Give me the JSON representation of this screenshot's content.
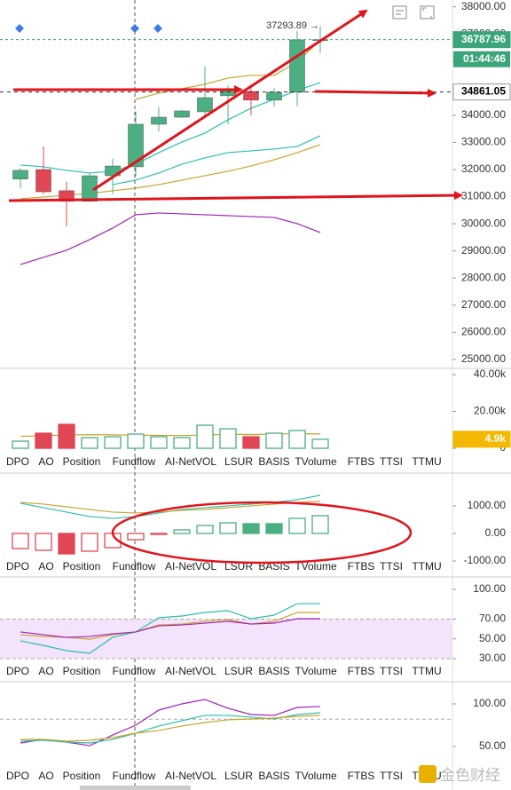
{
  "chart_data": [
    {
      "type": "candlestick",
      "open": [
        31650,
        32000,
        31220,
        30830,
        31770,
        32100,
        33670,
        33930,
        34130,
        34720,
        34880,
        34560,
        34850,
        36780
      ],
      "high": [
        32050,
        32850,
        31540,
        31850,
        32400,
        34150,
        34300,
        34200,
        35800,
        35100,
        35000,
        35000,
        37100,
        37293.89
      ],
      "low": [
        31300,
        31100,
        29910,
        30800,
        31100,
        31750,
        33400,
        33900,
        33950,
        33670,
        34000,
        34330,
        34330,
        36300
      ],
      "close": [
        31970,
        31180,
        30830,
        31770,
        32130,
        33670,
        33930,
        34160,
        34650,
        34980,
        34560,
        34850,
        36780,
        36787.96
      ],
      "up_color": "#4caf82",
      "down_color": "#e04653",
      "lines": [
        {
          "color": "#2bbfae",
          "values": [
            32166,
            32100,
            31970,
            31871,
            31937,
            32198,
            32624,
            33016,
            33344,
            33834,
            34260,
            34587,
            34914,
            35209
          ]
        },
        {
          "color": "#2bbfae",
          "values": [
            null,
            null,
            null,
            null,
            31446,
            31609,
            31871,
            32198,
            32427,
            32624,
            32689,
            32754,
            32853,
            33245
          ]
        },
        {
          "color": "#c9a227",
          "values": [
            30922,
            30988,
            31053,
            31119,
            31217,
            31315,
            31446,
            31609,
            31773,
            31937,
            32133,
            32362,
            32624,
            32918
          ]
        },
        {
          "color": "#c9a227",
          "values": [
            null,
            null,
            null,
            null,
            null,
            34587,
            34816,
            34980,
            35143,
            35372,
            35470,
            35470,
            35961,
            36779
          ]
        },
        {
          "color": "#a020c0",
          "values": [
            28501,
            28763,
            29025,
            29417,
            29843,
            30333,
            30399,
            30366,
            30333,
            30301,
            30268,
            30235,
            30006,
            29679
          ]
        }
      ],
      "ylim": [
        24670,
        38250
      ],
      "yticks": [
        {
          "value": 25000,
          "label": "25000.00"
        },
        {
          "value": 26000,
          "label": "26000.00"
        },
        {
          "value": 27000,
          "label": "27000.00"
        },
        {
          "value": 28000,
          "label": "28000.00"
        },
        {
          "value": 29000,
          "label": "29000.00"
        },
        {
          "value": 30000,
          "label": "30000.00"
        },
        {
          "value": 31000,
          "label": "31000.00"
        },
        {
          "value": 32000,
          "label": "32000.00"
        },
        {
          "value": 33000,
          "label": "33000.00"
        },
        {
          "value": 34000,
          "label": "34000.00"
        },
        {
          "value": 35000,
          "label": "35000.00"
        },
        {
          "value": 36000,
          "label": "36000.00"
        },
        {
          "value": 37000,
          "label": "37000.00"
        },
        {
          "value": 38000,
          "label": "38000.00"
        }
      ],
      "high_marker": {
        "value": 37293.89,
        "label": "37293.89 →"
      },
      "last_price": {
        "value": 36787.96,
        "label": "36787.96"
      },
      "countdown": "01:44:46",
      "line_price": {
        "value": 34861.05,
        "label": "34861.05"
      }
    },
    {
      "type": "bar",
      "values": [
        3860,
        8190,
        13000,
        5780,
        6260,
        7710,
        6260,
        5780,
        12530,
        10600,
        6260,
        8190,
        9640,
        4900
      ],
      "colors": [
        "#4caf82",
        "#e04653",
        "#e04653",
        "#4caf82",
        "#4caf82",
        "#4caf82",
        "#4caf82",
        "#4caf82",
        "#4caf82",
        "#4caf82",
        "#e04653",
        "#4caf82",
        "#4caf82",
        "#4caf82"
      ],
      "filled": [
        false,
        true,
        true,
        false,
        false,
        false,
        false,
        false,
        false,
        false,
        true,
        false,
        false,
        false
      ],
      "lines": [
        {
          "color": "#c9a227",
          "values": [
            6500,
            6800,
            7200,
            7400,
            7300,
            7100,
            7000,
            6900,
            7200,
            7600,
            7500,
            7700,
            7900,
            7800
          ]
        }
      ],
      "ylim": [
        -2400,
        43400
      ],
      "yticks": [
        0,
        {
          "value": 20000,
          "label": "20.00k"
        },
        {
          "value": 40000,
          "label": "40.00k"
        }
      ],
      "last_value": {
        "value": 4900,
        "label": "4.9k"
      }
    },
    {
      "type": "bar",
      "values": [
        -548,
        -613,
        -742,
        -645,
        -516,
        -226,
        -30,
        129,
        290,
        387,
        355,
        355,
        548,
        645
      ],
      "colors": [
        "#e04653",
        "#e04653",
        "#e04653",
        "#e04653",
        "#e04653",
        "#e04653",
        "#e04653",
        "#4caf82",
        "#4caf82",
        "#4caf82",
        "#4caf82",
        "#4caf82",
        "#4caf82",
        "#4caf82"
      ],
      "filled": [
        false,
        false,
        true,
        false,
        false,
        false,
        true,
        false,
        false,
        false,
        true,
        true,
        false,
        false
      ],
      "lines": [
        {
          "color": "#2bbfae",
          "values": [
            1097,
            935,
            774,
            613,
            548,
            613,
            742,
            871,
            935,
            1000,
            1065,
            1129,
            1226,
            1387
          ]
        },
        {
          "color": "#c9a227",
          "values": [
            1129,
            1065,
            968,
            871,
            774,
            742,
            774,
            839,
            871,
            935,
            1000,
            1065,
            1129,
            1161
          ]
        }
      ],
      "ylim": [
        -1580,
        2190
      ],
      "yticks": [
        {
          "value": -1000,
          "label": "-1000.00"
        },
        {
          "value": 0,
          "label": "0.00"
        },
        {
          "value": 1000,
          "label": "1000.00"
        }
      ]
    },
    {
      "type": "line",
      "band": [
        30,
        70
      ],
      "band_color": "#f3e3fb",
      "lines": [
        {
          "color": "#2bbfae",
          "values": [
            47.9,
            43.4,
            38.1,
            35.4,
            51.6,
            57,
            71.3,
            73.1,
            76.7,
            78.5,
            70.4,
            74,
            85.6,
            85.6
          ]
        },
        {
          "color": "#c9a227",
          "values": [
            54.2,
            52.4,
            51.5,
            49.7,
            54.2,
            57,
            64.1,
            65,
            67.7,
            69.5,
            65,
            67.7,
            76.7,
            76.7
          ]
        },
        {
          "color": "#a020c0",
          "values": [
            57,
            54.2,
            51.5,
            52.4,
            55.1,
            57,
            63.2,
            64.1,
            65.9,
            67.7,
            65,
            65.9,
            70.4,
            70.4
          ]
        }
      ],
      "ylim": [
        6.7,
        112.6
      ],
      "yticks": [
        {
          "value": 30,
          "label": "30.00"
        },
        {
          "value": 50,
          "label": "50.00"
        },
        {
          "value": 70,
          "label": "70.00"
        },
        {
          "value": 100,
          "label": "100.00"
        }
      ]
    },
    {
      "type": "line",
      "ref_line": 82,
      "lines": [
        {
          "color": "#a020c0",
          "values": [
            54.2,
            58.3,
            55.2,
            51,
            63.5,
            75,
            92.7,
            100,
            105.2,
            94.8,
            87.5,
            86.5,
            95.8,
            96.9
          ]
        },
        {
          "color": "#2bbfae",
          "values": [
            56.3,
            57.3,
            55.2,
            54.2,
            58.3,
            65.6,
            74,
            80.2,
            86.5,
            86.5,
            84.4,
            82.3,
            87.5,
            89.6
          ]
        },
        {
          "color": "#c9a227",
          "values": [
            58.3,
            58.3,
            56.3,
            57.3,
            60.4,
            65.6,
            68.8,
            74,
            78.1,
            81.3,
            82.3,
            83.3,
            85.4,
            86.5
          ]
        }
      ],
      "ylim": [
        -1,
        126
      ],
      "yticks": [
        {
          "value": 50,
          "label": "50.00"
        },
        {
          "value": 100,
          "label": "100.00"
        }
      ]
    }
  ],
  "indicator_tabs": [
    "DPO",
    "AO",
    "Position",
    "Fundflow",
    "AI-NetVOL",
    "LSUR",
    "BASIS",
    "TVolume",
    "FTBS",
    "TTSI",
    "TTMU"
  ],
  "watermark": "金色财经"
}
